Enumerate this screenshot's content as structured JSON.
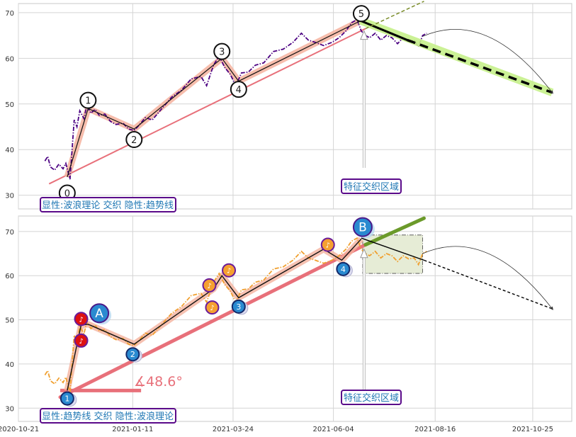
{
  "chart_data": [
    {
      "type": "line",
      "panel": "top",
      "ylim": [
        27,
        72
      ],
      "yticks": [
        "30",
        "40",
        "50",
        "60",
        "70"
      ],
      "ytick_values": [
        30,
        40,
        50,
        60,
        70
      ],
      "grid": true,
      "price_series": {
        "color": "#4b0082",
        "points": [
          [
            "2020-11-09",
            37.5
          ],
          [
            "2020-11-11",
            38.5
          ],
          [
            "2020-11-13",
            36.2
          ],
          [
            "2020-11-16",
            35.5
          ],
          [
            "2020-11-19",
            36.8
          ],
          [
            "2020-11-22",
            35.8
          ],
          [
            "2020-11-24",
            37.0
          ],
          [
            "2020-11-27",
            33.5
          ],
          [
            "2020-11-30",
            46.5
          ],
          [
            "2020-12-02",
            45.0
          ],
          [
            "2020-12-04",
            48.5
          ],
          [
            "2020-12-07",
            46.8
          ],
          [
            "2020-12-09",
            49.5
          ],
          [
            "2020-12-12",
            48.0
          ],
          [
            "2020-12-15",
            48.8
          ],
          [
            "2020-12-18",
            47.5
          ],
          [
            "2020-12-22",
            47.8
          ],
          [
            "2020-12-26",
            46.2
          ],
          [
            "2020-12-30",
            45.5
          ],
          [
            "2021-01-04",
            45.8
          ],
          [
            "2021-01-08",
            44.5
          ],
          [
            "2021-01-12",
            44.2
          ],
          [
            "2021-01-16",
            45.5
          ],
          [
            "2021-01-20",
            47.0
          ],
          [
            "2021-01-25",
            46.5
          ],
          [
            "2021-02-01",
            49.0
          ],
          [
            "2021-02-08",
            51.5
          ],
          [
            "2021-02-15",
            53.0
          ],
          [
            "2021-02-22",
            55.5
          ],
          [
            "2021-03-01",
            56.0
          ],
          [
            "2021-03-05",
            54.0
          ],
          [
            "2021-03-10",
            58.5
          ],
          [
            "2021-03-14",
            60.5
          ],
          [
            "2021-03-18",
            58.0
          ],
          [
            "2021-03-22",
            56.5
          ],
          [
            "2021-03-26",
            54.0
          ],
          [
            "2021-03-30",
            56.8
          ],
          [
            "2021-04-04",
            57.0
          ],
          [
            "2021-04-09",
            58.5
          ],
          [
            "2021-04-15",
            59.0
          ],
          [
            "2021-04-22",
            61.5
          ],
          [
            "2021-04-29",
            62.0
          ],
          [
            "2021-05-06",
            63.5
          ],
          [
            "2021-05-12",
            65.5
          ],
          [
            "2021-05-17",
            64.0
          ],
          [
            "2021-05-22",
            63.5
          ],
          [
            "2021-05-28",
            62.8
          ],
          [
            "2021-06-03",
            63.5
          ],
          [
            "2021-06-08",
            64.5
          ],
          [
            "2021-06-13",
            66.0
          ],
          [
            "2021-06-17",
            67.8
          ],
          [
            "2021-06-21",
            68.5
          ],
          [
            "2021-06-24",
            66.0
          ],
          [
            "2021-06-27",
            65.0
          ],
          [
            "2021-06-30",
            64.5
          ],
          [
            "2021-07-04",
            65.5
          ],
          [
            "2021-07-08",
            64.0
          ],
          [
            "2021-07-12",
            65.0
          ],
          [
            "2021-07-16",
            64.5
          ],
          [
            "2021-07-20",
            63.2
          ],
          [
            "2021-07-24",
            64.5
          ],
          [
            "2021-07-28",
            63.8
          ],
          [
            "2021-08-01",
            64.0
          ],
          [
            "2021-08-04",
            62.5
          ],
          [
            "2021-08-07",
            65.0
          ],
          [
            "2021-08-10",
            65.5
          ]
        ]
      },
      "wave_points": [
        {
          "label": "0",
          "x": "2020-11-25",
          "y": 30.5,
          "line_y": 34.0
        },
        {
          "label": "1",
          "x": "2020-12-10",
          "y": 50.8,
          "line_y": 49.0
        },
        {
          "label": "2",
          "x": "2021-01-12",
          "y": 42.2,
          "line_y": 44.5
        },
        {
          "label": "3",
          "x": "2021-03-16",
          "y": 61.5,
          "line_y": 60.0
        },
        {
          "label": "4",
          "x": "2021-03-28",
          "y": 53.2,
          "line_y": 55.0
        },
        {
          "label": "5",
          "x": "2021-06-24",
          "y": 69.8,
          "line_y": 68.3
        }
      ],
      "trendline": [
        [
          "2020-11-12",
          32.5
        ],
        [
          "2021-06-27",
          66.5
        ]
      ],
      "forecast_dashed": [
        [
          "2021-06-23",
          68.3
        ],
        [
          "2021-11-08",
          52.5
        ]
      ],
      "forecast_olive": [
        [
          "2021-06-27",
          66.5
        ],
        [
          "2021-08-08",
          72.5
        ]
      ],
      "arc": [
        [
          "2021-08-07",
          64.8
        ],
        [
          "2021-11-08",
          52.5
        ]
      ],
      "annotation_x": "2021-06-26",
      "annotation_y": [
        36.0,
        66.0
      ],
      "box_label": "显性:波浪理论 交织 隐性:趋势线",
      "zone_label": "特征交织区域"
    },
    {
      "type": "line",
      "panel": "bottom",
      "ylim": [
        27,
        73.5
      ],
      "yticks": [
        "30",
        "40",
        "50",
        "60",
        "70"
      ],
      "ytick_values": [
        30,
        40,
        50,
        60,
        70
      ],
      "xticks": [
        "2020-10-21",
        "2021-01-11",
        "2021-03-24",
        "2021-06-04",
        "2021-08-16",
        "2021-10-25"
      ],
      "grid": true,
      "price_series": {
        "color": "#f0a030",
        "points": [
          [
            "2020-11-09",
            37.5
          ],
          [
            "2020-11-11",
            38.5
          ],
          [
            "2020-11-13",
            36.2
          ],
          [
            "2020-11-16",
            35.5
          ],
          [
            "2020-11-19",
            36.8
          ],
          [
            "2020-11-22",
            35.8
          ],
          [
            "2020-11-24",
            37.0
          ],
          [
            "2020-11-27",
            33.5
          ],
          [
            "2020-11-30",
            46.5
          ],
          [
            "2020-12-02",
            45.0
          ],
          [
            "2020-12-04",
            48.5
          ],
          [
            "2020-12-07",
            46.8
          ],
          [
            "2020-12-09",
            49.5
          ],
          [
            "2020-12-12",
            48.0
          ],
          [
            "2020-12-15",
            48.8
          ],
          [
            "2020-12-18",
            47.5
          ],
          [
            "2020-12-22",
            47.8
          ],
          [
            "2020-12-26",
            46.2
          ],
          [
            "2020-12-30",
            45.5
          ],
          [
            "2021-01-04",
            45.8
          ],
          [
            "2021-01-08",
            44.5
          ],
          [
            "2021-01-12",
            44.2
          ],
          [
            "2021-01-16",
            45.5
          ],
          [
            "2021-01-20",
            47.0
          ],
          [
            "2021-01-25",
            46.5
          ],
          [
            "2021-02-01",
            49.0
          ],
          [
            "2021-02-08",
            51.5
          ],
          [
            "2021-02-15",
            53.0
          ],
          [
            "2021-02-22",
            55.5
          ],
          [
            "2021-03-01",
            56.0
          ],
          [
            "2021-03-05",
            54.0
          ],
          [
            "2021-03-10",
            58.5
          ],
          [
            "2021-03-14",
            60.5
          ],
          [
            "2021-03-18",
            58.0
          ],
          [
            "2021-03-22",
            56.5
          ],
          [
            "2021-03-26",
            54.0
          ],
          [
            "2021-03-30",
            56.8
          ],
          [
            "2021-04-04",
            57.0
          ],
          [
            "2021-04-09",
            58.5
          ],
          [
            "2021-04-15",
            59.0
          ],
          [
            "2021-04-22",
            61.5
          ],
          [
            "2021-04-29",
            62.0
          ],
          [
            "2021-05-06",
            63.5
          ],
          [
            "2021-05-12",
            65.5
          ],
          [
            "2021-05-17",
            64.0
          ],
          [
            "2021-05-22",
            63.5
          ],
          [
            "2021-05-28",
            62.8
          ],
          [
            "2021-06-03",
            63.5
          ],
          [
            "2021-06-08",
            64.5
          ],
          [
            "2021-06-13",
            66.0
          ],
          [
            "2021-06-17",
            67.8
          ],
          [
            "2021-06-21",
            68.5
          ],
          [
            "2021-06-24",
            66.0
          ],
          [
            "2021-06-27",
            65.0
          ],
          [
            "2021-06-30",
            64.5
          ],
          [
            "2021-07-04",
            65.5
          ],
          [
            "2021-07-08",
            64.0
          ],
          [
            "2021-07-12",
            65.0
          ],
          [
            "2021-07-16",
            64.5
          ],
          [
            "2021-07-20",
            63.2
          ],
          [
            "2021-07-24",
            64.5
          ],
          [
            "2021-07-28",
            63.8
          ],
          [
            "2021-08-01",
            64.0
          ],
          [
            "2021-08-04",
            62.5
          ],
          [
            "2021-08-07",
            65.0
          ],
          [
            "2021-08-10",
            65.5
          ]
        ]
      },
      "wave_line": [
        [
          "2020-11-25",
          34.0
        ],
        [
          "2020-12-05",
          48.8
        ],
        [
          "2020-12-10",
          49.0
        ],
        [
          "2021-01-12",
          44.5
        ],
        [
          "2021-03-10",
          57.0
        ],
        [
          "2021-03-16",
          60.0
        ],
        [
          "2021-03-28",
          55.0
        ],
        [
          "2021-05-28",
          66.0
        ],
        [
          "2021-06-10",
          63.5
        ],
        [
          "2021-06-24",
          68.3
        ]
      ],
      "markers_orange": [
        {
          "x": "2020-12-05",
          "y": 50.2,
          "color": "#dd1111"
        },
        {
          "x": "2020-12-05",
          "y": 45.3,
          "color": "#dd1111"
        },
        {
          "x": "2021-03-07",
          "y": 57.8,
          "color": "#f5a030"
        },
        {
          "x": "2021-03-09",
          "y": 52.8,
          "color": "#f5a030"
        },
        {
          "x": "2021-03-21",
          "y": 61.2,
          "color": "#f5a030"
        },
        {
          "x": "2021-05-31",
          "y": 67.0,
          "color": "#f5a030"
        }
      ],
      "markers_blue": [
        {
          "label": "1",
          "x": "2020-11-25",
          "y": 32.2
        },
        {
          "label": "2",
          "x": "2021-01-11",
          "y": 42.2
        },
        {
          "label": "3",
          "x": "2021-03-28",
          "y": 53.0
        },
        {
          "label": "4",
          "x": "2021-06-11",
          "y": 61.5
        }
      ],
      "big_markers": [
        {
          "label": "A",
          "x": "2020-12-18",
          "y": 51.5
        },
        {
          "label": "B",
          "x": "2021-06-25",
          "y": 71.0
        }
      ],
      "trendline": [
        [
          "2020-11-20",
          32.5
        ],
        [
          "2021-06-27",
          67.0
        ]
      ],
      "green_line": [
        [
          "2021-06-27",
          67.0
        ],
        [
          "2021-08-08",
          73.0
        ]
      ],
      "horiz_line": [
        [
          "2020-11-20",
          34.0
        ],
        [
          "2021-01-17",
          34.0
        ]
      ],
      "forecast_dashed": [
        [
          "2021-06-24",
          68.5
        ],
        [
          "2021-11-08",
          52.5
        ]
      ],
      "arc": [
        [
          "2021-08-07",
          65.0
        ],
        [
          "2021-11-08",
          52.5
        ]
      ],
      "rect": {
        "x0": "2021-06-25",
        "x1": "2021-08-07",
        "y0": 60.5,
        "y1": 69.2
      },
      "annotation_x": "2021-06-26",
      "annotation_y": [
        34.0,
        66.0
      ],
      "angle_label": "∡48.6°",
      "box_label": "显性:趋势线 交织 隐性:波浪理论",
      "zone_label": "特征交织区域"
    }
  ]
}
